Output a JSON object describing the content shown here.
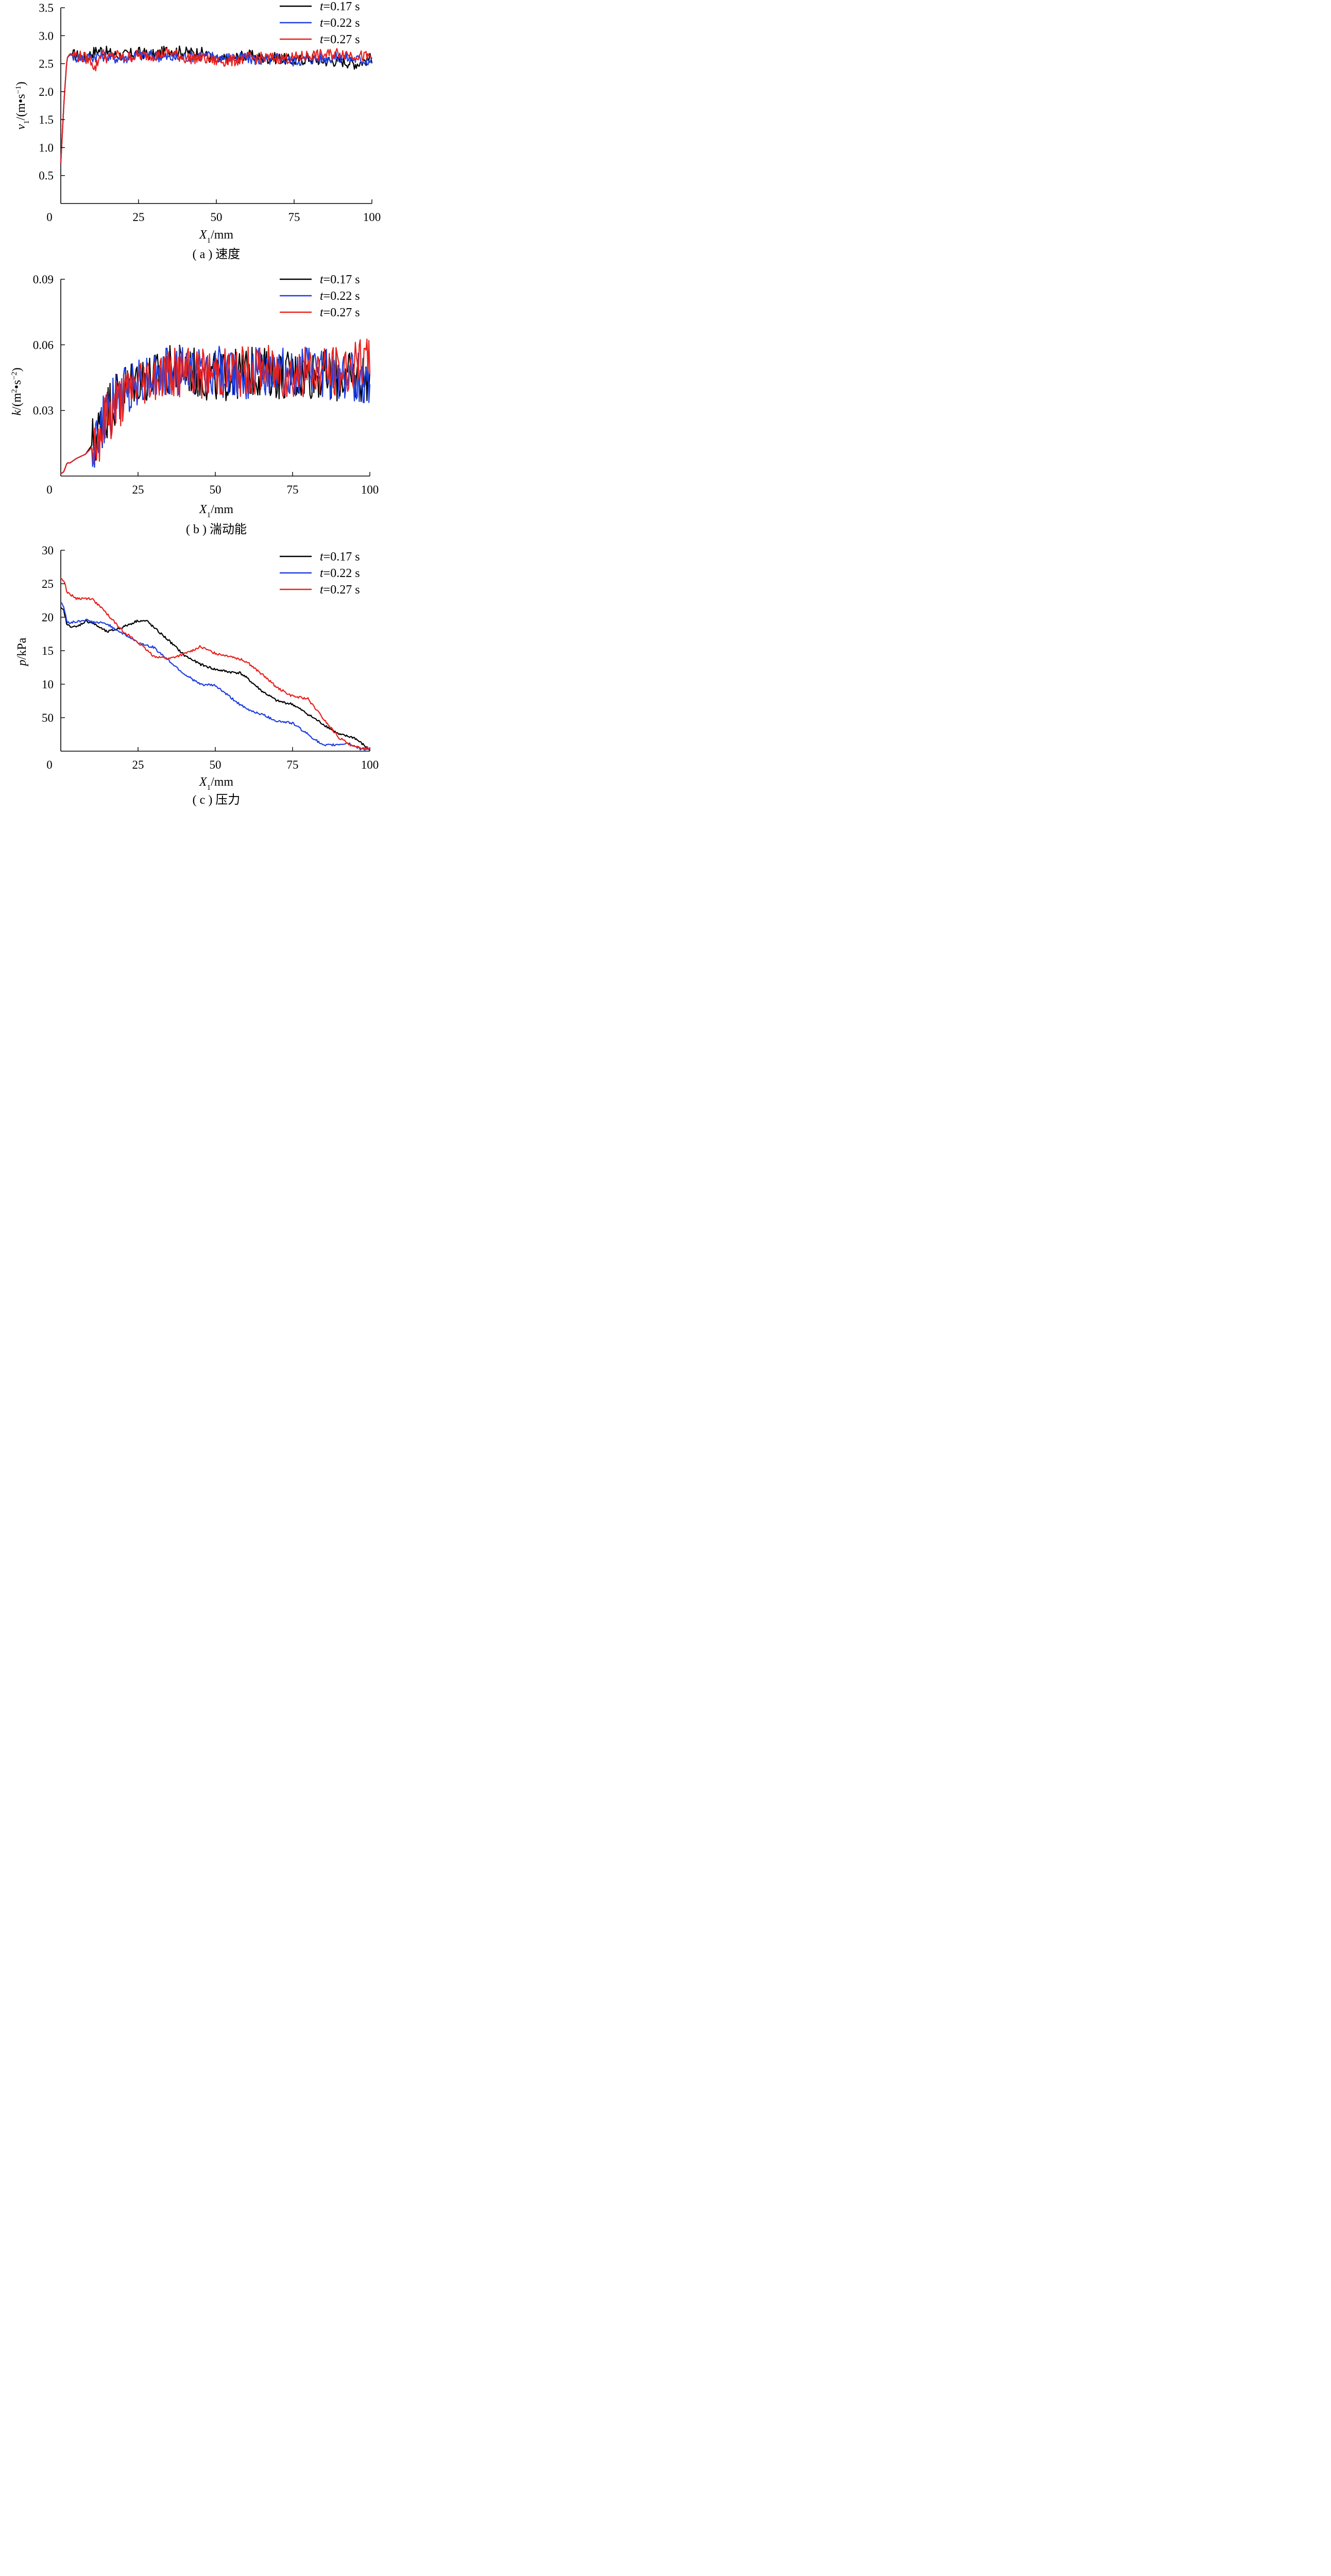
{
  "chart_data": [
    {
      "type": "line",
      "caption": "( a ) 速度",
      "ylabel": {
        "var": "v",
        "sub": "1",
        "unit_pre": "/(m•s",
        "sup": "−1",
        "unit_post": ")"
      },
      "xlabel": {
        "var": "X",
        "sub": "1",
        "unit": "/mm"
      },
      "x_ticks": [
        "0",
        "25",
        "50",
        "75",
        "100"
      ],
      "y_ticks": [
        "0.5",
        "1.0",
        "1.5",
        "2.0",
        "2.5",
        "3.0",
        "3.5"
      ],
      "xlim": [
        0,
        100
      ],
      "ylim": [
        0,
        3.5
      ],
      "legend_position": "top-right",
      "series": [
        {
          "name": "t=0.17 s",
          "legend_var": "t",
          "legend_val": "=0.17 s",
          "color": "#000000",
          "x": [
            0,
            1,
            2,
            3,
            5,
            8,
            10,
            13,
            15,
            18,
            20,
            25,
            30,
            35,
            40,
            45,
            50,
            55,
            60,
            65,
            70,
            75,
            80,
            85,
            90,
            95,
            100
          ],
          "y": [
            0.72,
            1.8,
            2.6,
            2.68,
            2.65,
            2.6,
            2.7,
            2.75,
            2.7,
            2.65,
            2.65,
            2.7,
            2.65,
            2.75,
            2.7,
            2.7,
            2.55,
            2.6,
            2.65,
            2.6,
            2.6,
            2.55,
            2.6,
            2.55,
            2.55,
            2.5,
            2.6
          ]
        },
        {
          "name": "t=0.22 s",
          "legend_var": "t",
          "legend_val": "=0.22 s",
          "color": "#1f3fe0",
          "x": [
            0,
            1,
            2,
            3,
            5,
            8,
            10,
            13,
            15,
            18,
            20,
            25,
            30,
            35,
            40,
            45,
            50,
            55,
            60,
            65,
            70,
            75,
            80,
            85,
            90,
            95,
            100
          ],
          "y": [
            0.72,
            1.8,
            2.6,
            2.66,
            2.62,
            2.6,
            2.62,
            2.65,
            2.62,
            2.6,
            2.6,
            2.65,
            2.65,
            2.6,
            2.62,
            2.65,
            2.62,
            2.6,
            2.6,
            2.55,
            2.6,
            2.55,
            2.58,
            2.6,
            2.62,
            2.58,
            2.55
          ]
        },
        {
          "name": "t=0.27 s",
          "legend_var": "t",
          "legend_val": "=0.27 s",
          "color": "#e8211d",
          "x": [
            0,
            1,
            2,
            3,
            5,
            8,
            10,
            11,
            13,
            15,
            18,
            20,
            25,
            30,
            35,
            40,
            45,
            50,
            55,
            60,
            65,
            70,
            75,
            80,
            85,
            90,
            95,
            100
          ],
          "y": [
            0.72,
            1.8,
            2.6,
            2.68,
            2.65,
            2.6,
            2.55,
            2.4,
            2.7,
            2.6,
            2.65,
            2.6,
            2.65,
            2.65,
            2.7,
            2.6,
            2.6,
            2.55,
            2.55,
            2.6,
            2.6,
            2.6,
            2.6,
            2.65,
            2.65,
            2.7,
            2.65,
            2.6
          ]
        }
      ]
    },
    {
      "type": "line",
      "caption": "( b ) 湍动能",
      "ylabel": {
        "var": "k",
        "sub": "",
        "unit_pre": "/(m",
        "sup2a": "2",
        "unit_mid": "•s",
        "sup": "−2",
        "unit_post": ")"
      },
      "xlabel": {
        "var": "X",
        "sub": "1",
        "unit": "/mm"
      },
      "x_ticks": [
        "0",
        "25",
        "50",
        "75",
        "100"
      ],
      "y_ticks": [
        "0.03",
        "0.06",
        "0.09"
      ],
      "xlim": [
        0,
        100
      ],
      "ylim": [
        0,
        0.09
      ],
      "legend_position": "top-right",
      "series": [
        {
          "name": "t=0.17 s",
          "legend_var": "t",
          "legend_val": "=0.17 s",
          "color": "#000000",
          "x": [
            0,
            1,
            2,
            3,
            5,
            8,
            10,
            12,
            15,
            20,
            25,
            30,
            35,
            40,
            45,
            50,
            55,
            60,
            65,
            70,
            75,
            80,
            85,
            90,
            95,
            100
          ],
          "y": [
            0.001,
            0.002,
            0.006,
            0.006,
            0.008,
            0.01,
            0.014,
            0.02,
            0.03,
            0.04,
            0.045,
            0.045,
            0.048,
            0.05,
            0.046,
            0.045,
            0.046,
            0.047,
            0.048,
            0.047,
            0.046,
            0.047,
            0.046,
            0.045,
            0.045,
            0.045
          ]
        },
        {
          "name": "t=0.22 s",
          "legend_var": "t",
          "legend_val": "=0.22 s",
          "color": "#1f3fe0",
          "x": [
            0,
            1,
            2,
            3,
            5,
            8,
            10,
            12,
            15,
            20,
            25,
            30,
            35,
            40,
            45,
            50,
            55,
            60,
            65,
            70,
            75,
            80,
            85,
            90,
            95,
            100
          ],
          "y": [
            0.001,
            0.002,
            0.006,
            0.006,
            0.008,
            0.01,
            0.013,
            0.018,
            0.028,
            0.038,
            0.044,
            0.046,
            0.047,
            0.048,
            0.048,
            0.048,
            0.047,
            0.047,
            0.048,
            0.048,
            0.046,
            0.047,
            0.047,
            0.046,
            0.045,
            0.043
          ]
        },
        {
          "name": "t=0.27 s",
          "legend_var": "t",
          "legend_val": "=0.27 s",
          "color": "#e8211d",
          "x": [
            0,
            1,
            2,
            3,
            5,
            8,
            10,
            12,
            15,
            20,
            25,
            30,
            35,
            40,
            45,
            50,
            55,
            60,
            65,
            70,
            75,
            80,
            85,
            90,
            95,
            100
          ],
          "y": [
            0.001,
            0.002,
            0.006,
            0.006,
            0.008,
            0.01,
            0.013,
            0.018,
            0.027,
            0.036,
            0.043,
            0.046,
            0.047,
            0.047,
            0.047,
            0.047,
            0.048,
            0.048,
            0.049,
            0.048,
            0.046,
            0.048,
            0.048,
            0.048,
            0.05,
            0.052
          ]
        }
      ]
    },
    {
      "type": "line",
      "caption": "( c ) 压力",
      "ylabel": {
        "var": "p",
        "sub": "",
        "unit_pre": "/kPa",
        "sup": "",
        "unit_post": ""
      },
      "xlabel": {
        "var": "X",
        "sub": "1",
        "unit": "/mm"
      },
      "x_ticks": [
        "0",
        "25",
        "50",
        "75",
        "100"
      ],
      "y_ticks": [
        "50",
        "10",
        "15",
        "20",
        "25",
        "30"
      ],
      "xlim": [
        0,
        100
      ],
      "ylim": [
        0,
        30
      ],
      "legend_position": "top-right",
      "series": [
        {
          "name": "t=0.17 s",
          "legend_var": "t",
          "legend_val": "=0.17 s",
          "color": "#000000",
          "x": [
            0,
            1,
            2,
            5,
            8,
            10,
            15,
            20,
            25,
            28,
            30,
            35,
            40,
            45,
            50,
            55,
            58,
            60,
            65,
            70,
            75,
            80,
            85,
            90,
            95,
            100
          ],
          "y": [
            21.3,
            21.0,
            18.8,
            18.5,
            19.4,
            19.2,
            17.8,
            18.5,
            19.5,
            19.4,
            18.5,
            16.5,
            14.3,
            13.0,
            12.2,
            11.8,
            11.7,
            11.0,
            9.0,
            7.5,
            7.0,
            5.5,
            4.0,
            2.5,
            2.0,
            0.2
          ]
        },
        {
          "name": "t=0.22 s",
          "legend_var": "t",
          "legend_val": "=0.22 s",
          "color": "#1f3fe0",
          "x": [
            0,
            1,
            2,
            5,
            8,
            10,
            15,
            20,
            25,
            30,
            35,
            40,
            45,
            50,
            55,
            60,
            65,
            70,
            75,
            80,
            85,
            90,
            93,
            97,
            100
          ],
          "y": [
            22.3,
            21.5,
            19.2,
            19.3,
            19.6,
            19.3,
            19.0,
            17.6,
            16.2,
            15.5,
            13.5,
            11.5,
            10.0,
            9.8,
            8.0,
            6.3,
            5.5,
            4.5,
            4.2,
            2.5,
            0.8,
            1.0,
            1.2,
            0.3,
            0.3
          ]
        },
        {
          "name": "t=0.27 s",
          "legend_var": "t",
          "legend_val": "=0.27 s",
          "color": "#e8211d",
          "x": [
            0,
            1,
            2,
            5,
            10,
            15,
            20,
            25,
            30,
            35,
            40,
            45,
            50,
            55,
            60,
            65,
            70,
            75,
            80,
            85,
            90,
            95,
            100
          ],
          "y": [
            25.8,
            25.5,
            23.8,
            22.8,
            22.8,
            20.5,
            18.0,
            16.2,
            14.2,
            13.8,
            14.5,
            15.6,
            14.6,
            14.2,
            13.4,
            11.5,
            9.5,
            8.2,
            7.8,
            4.8,
            2.0,
            0.6,
            0.4
          ]
        }
      ]
    }
  ]
}
